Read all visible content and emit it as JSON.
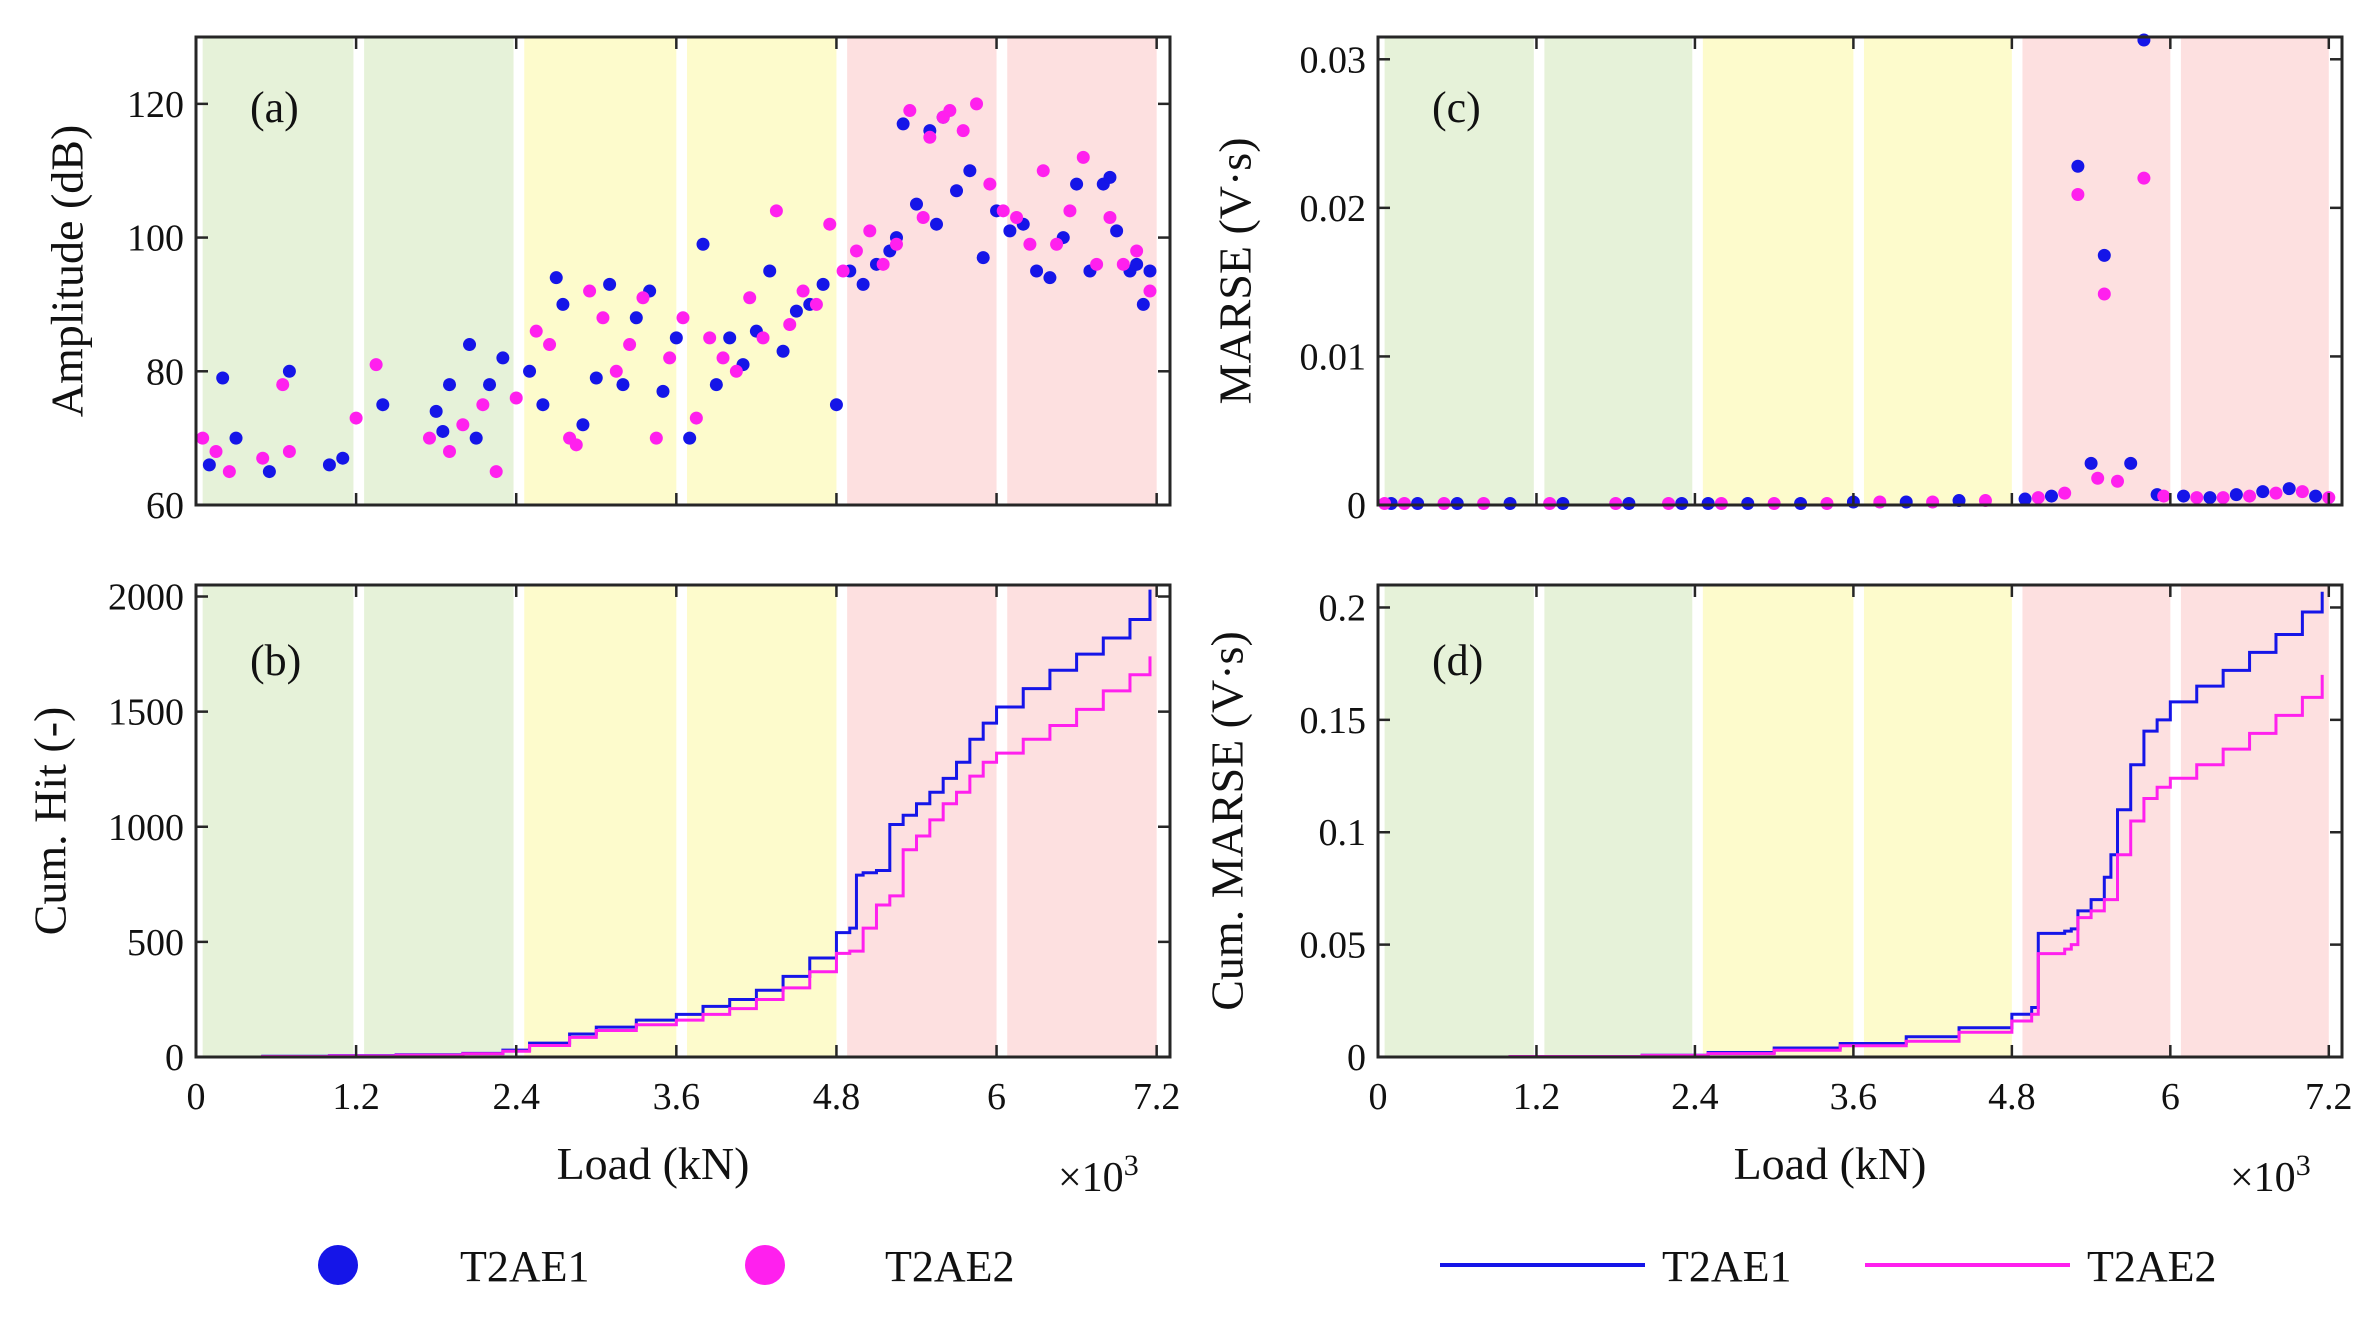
{
  "figure": {
    "x_axis_label": "Load (kN)",
    "x_exponent_prefix": "×10",
    "x_exponent": "3",
    "x_tick_labels": [
      "0",
      "1.2",
      "2.4",
      "3.6",
      "4.8",
      "6",
      "7.2"
    ],
    "x_range": [
      0,
      7.3
    ]
  },
  "bands": [
    {
      "from": 0.05,
      "to": 1.18,
      "color": "#e6f2d9"
    },
    {
      "from": 1.26,
      "to": 2.38,
      "color": "#e6f2d9"
    },
    {
      "from": 2.46,
      "to": 3.6,
      "color": "#fdfbcc"
    },
    {
      "from": 3.68,
      "to": 4.8,
      "color": "#fdfbcc"
    },
    {
      "from": 4.88,
      "to": 6.0,
      "color": "#fde0e0"
    },
    {
      "from": 6.08,
      "to": 7.2,
      "color": "#fde0e0"
    }
  ],
  "colors": {
    "T2AE1": "#1515e8",
    "T2AE2": "#ff20ee"
  },
  "legend_left": {
    "marker": "filled-circle",
    "items": [
      "T2AE1",
      "T2AE2"
    ]
  },
  "legend_right": {
    "marker": "line",
    "items": [
      "T2AE1",
      "T2AE2"
    ]
  },
  "chart_data": [
    {
      "panel": "(a)",
      "type": "scatter",
      "ylabel": "Amplitude (dB)",
      "ylim": [
        60,
        130
      ],
      "y_tick_labels": [
        "60",
        "80",
        "100",
        "120"
      ],
      "series": [
        {
          "name": "T2AE1",
          "x": [
            0.1,
            0.2,
            0.3,
            0.55,
            0.7,
            1.0,
            1.1,
            1.4,
            1.8,
            1.85,
            1.9,
            2.05,
            2.1,
            2.2,
            2.3,
            2.5,
            2.6,
            2.7,
            2.75,
            2.9,
            3.0,
            3.1,
            3.2,
            3.3,
            3.4,
            3.5,
            3.6,
            3.7,
            3.8,
            3.9,
            4.0,
            4.1,
            4.2,
            4.3,
            4.4,
            4.5,
            4.6,
            4.7,
            4.8,
            4.9,
            5.0,
            5.1,
            5.2,
            5.25,
            5.3,
            5.4,
            5.5,
            5.55,
            5.6,
            5.7,
            5.8,
            5.9,
            6.0,
            6.1,
            6.2,
            6.3,
            6.4,
            6.5,
            6.6,
            6.7,
            6.8,
            6.85,
            6.9,
            7.0,
            7.05,
            7.1,
            7.15
          ],
          "y": [
            66,
            79,
            70,
            65,
            80,
            66,
            67,
            75,
            74,
            71,
            78,
            84,
            70,
            78,
            82,
            80,
            75,
            94,
            90,
            72,
            79,
            93,
            78,
            88,
            92,
            77,
            85,
            70,
            99,
            78,
            85,
            81,
            86,
            95,
            83,
            89,
            90,
            93,
            75,
            95,
            93,
            96,
            98,
            100,
            117,
            105,
            116,
            102,
            118,
            107,
            110,
            97,
            104,
            101,
            102,
            95,
            94,
            100,
            108,
            95,
            108,
            109,
            101,
            95,
            96,
            90,
            95
          ]
        },
        {
          "name": "T2AE2",
          "x": [
            0.05,
            0.15,
            0.25,
            0.5,
            0.65,
            0.7,
            1.2,
            1.35,
            1.75,
            1.9,
            2.0,
            2.15,
            2.25,
            2.4,
            2.55,
            2.65,
            2.8,
            2.85,
            2.95,
            3.05,
            3.15,
            3.25,
            3.35,
            3.45,
            3.55,
            3.65,
            3.75,
            3.85,
            3.95,
            4.05,
            4.15,
            4.25,
            4.35,
            4.45,
            4.55,
            4.65,
            4.75,
            4.85,
            4.95,
            5.05,
            5.15,
            5.25,
            5.35,
            5.45,
            5.5,
            5.6,
            5.65,
            5.75,
            5.85,
            5.95,
            6.05,
            6.15,
            6.25,
            6.35,
            6.45,
            6.55,
            6.65,
            6.75,
            6.85,
            6.95,
            7.05,
            7.15
          ],
          "y": [
            70,
            68,
            65,
            67,
            78,
            68,
            73,
            81,
            70,
            68,
            72,
            75,
            65,
            76,
            86,
            84,
            70,
            69,
            92,
            88,
            80,
            84,
            91,
            70,
            82,
            88,
            73,
            85,
            82,
            80,
            91,
            85,
            104,
            87,
            92,
            90,
            102,
            95,
            98,
            101,
            96,
            99,
            119,
            103,
            115,
            118,
            119,
            116,
            120,
            108,
            104,
            103,
            99,
            110,
            99,
            104,
            112,
            96,
            103,
            96,
            98,
            92
          ]
        }
      ]
    },
    {
      "panel": "(b)",
      "type": "line",
      "ylabel": "Cum. Hit (-)",
      "ylim": [
        0,
        2050
      ],
      "y_tick_labels": [
        "0",
        "500",
        "1000",
        "1500",
        "2000"
      ],
      "series": [
        {
          "name": "T2AE1",
          "x": [
            0,
            0.5,
            1.0,
            1.5,
            2.0,
            2.3,
            2.5,
            2.8,
            3.0,
            3.3,
            3.6,
            3.8,
            4.0,
            4.2,
            4.4,
            4.6,
            4.8,
            4.9,
            4.95,
            5.0,
            5.1,
            5.2,
            5.3,
            5.4,
            5.5,
            5.6,
            5.7,
            5.8,
            5.9,
            6.0,
            6.2,
            6.4,
            6.6,
            6.8,
            7.0,
            7.15
          ],
          "y": [
            0,
            3,
            6,
            10,
            16,
            30,
            60,
            100,
            130,
            160,
            185,
            220,
            250,
            290,
            350,
            430,
            540,
            560,
            790,
            800,
            810,
            1010,
            1050,
            1100,
            1150,
            1210,
            1280,
            1380,
            1450,
            1520,
            1600,
            1680,
            1750,
            1820,
            1900,
            2030
          ]
        },
        {
          "name": "T2AE2",
          "x": [
            0,
            0.5,
            1.0,
            1.5,
            2.0,
            2.3,
            2.5,
            2.8,
            3.0,
            3.3,
            3.6,
            3.8,
            4.0,
            4.2,
            4.4,
            4.6,
            4.8,
            4.9,
            5.0,
            5.1,
            5.2,
            5.3,
            5.4,
            5.5,
            5.6,
            5.7,
            5.8,
            5.9,
            6.0,
            6.2,
            6.4,
            6.6,
            6.8,
            7.0,
            7.15
          ],
          "y": [
            0,
            2,
            5,
            8,
            14,
            25,
            50,
            85,
            115,
            140,
            160,
            185,
            210,
            250,
            300,
            370,
            450,
            460,
            560,
            660,
            700,
            900,
            960,
            1030,
            1100,
            1150,
            1220,
            1280,
            1320,
            1380,
            1440,
            1510,
            1590,
            1660,
            1740
          ]
        }
      ]
    },
    {
      "panel": "(c)",
      "type": "scatter",
      "ylabel": "MARSE (V·s)",
      "ylim": [
        0,
        0.0315
      ],
      "y_tick_labels": [
        "0",
        "0.01",
        "0.02",
        "0.03"
      ],
      "series": [
        {
          "name": "T2AE1",
          "x": [
            0.1,
            0.3,
            0.6,
            1.0,
            1.4,
            1.9,
            2.3,
            2.5,
            2.8,
            3.2,
            3.6,
            4.0,
            4.4,
            4.9,
            5.1,
            5.3,
            5.4,
            5.5,
            5.7,
            5.8,
            5.9,
            6.1,
            6.3,
            6.5,
            6.7,
            6.9,
            7.1
          ],
          "y": [
            0.0001,
            0.0001,
            0.0001,
            0.0001,
            0.0001,
            0.0001,
            0.0001,
            0.0001,
            0.0001,
            0.0001,
            0.0002,
            0.0002,
            0.0003,
            0.0004,
            0.0006,
            0.0228,
            0.0028,
            0.0168,
            0.0028,
            0.0313,
            0.0007,
            0.0006,
            0.0005,
            0.0007,
            0.0009,
            0.0011,
            0.0006
          ]
        },
        {
          "name": "T2AE2",
          "x": [
            0.05,
            0.2,
            0.5,
            0.8,
            1.3,
            1.8,
            2.2,
            2.6,
            3.0,
            3.4,
            3.8,
            4.2,
            4.6,
            5.0,
            5.2,
            5.3,
            5.45,
            5.5,
            5.6,
            5.8,
            5.95,
            6.2,
            6.4,
            6.6,
            6.8,
            7.0,
            7.2
          ],
          "y": [
            0.0001,
            0.0001,
            0.0001,
            0.0001,
            0.0001,
            0.0001,
            0.0001,
            0.0001,
            0.0001,
            0.0001,
            0.0002,
            0.0002,
            0.0003,
            0.0005,
            0.0008,
            0.0209,
            0.0018,
            0.0142,
            0.0016,
            0.022,
            0.0006,
            0.0005,
            0.0005,
            0.0006,
            0.0008,
            0.0009,
            0.0005
          ]
        }
      ]
    },
    {
      "panel": "(d)",
      "type": "line",
      "ylabel": "Cum. MARSE (V·s)",
      "ylim": [
        0,
        0.21
      ],
      "y_tick_labels": [
        "0",
        "0.05",
        "0.1",
        "0.15",
        "0.2"
      ],
      "series": [
        {
          "name": "T2AE1",
          "x": [
            0,
            1.0,
            2.0,
            2.5,
            3.0,
            3.5,
            4.0,
            4.4,
            4.8,
            4.95,
            5.0,
            5.2,
            5.25,
            5.3,
            5.4,
            5.5,
            5.55,
            5.6,
            5.7,
            5.8,
            5.9,
            6.0,
            6.2,
            6.4,
            6.6,
            6.8,
            7.0,
            7.15
          ],
          "y": [
            0,
            0.0002,
            0.0008,
            0.002,
            0.004,
            0.006,
            0.009,
            0.013,
            0.019,
            0.022,
            0.055,
            0.056,
            0.057,
            0.065,
            0.07,
            0.08,
            0.09,
            0.11,
            0.13,
            0.145,
            0.15,
            0.158,
            0.165,
            0.172,
            0.18,
            0.188,
            0.198,
            0.207
          ]
        },
        {
          "name": "T2AE2",
          "x": [
            0,
            1.0,
            2.0,
            2.5,
            3.0,
            3.5,
            4.0,
            4.4,
            4.8,
            4.95,
            5.0,
            5.2,
            5.25,
            5.3,
            5.4,
            5.5,
            5.6,
            5.7,
            5.8,
            5.9,
            6.0,
            6.2,
            6.4,
            6.6,
            6.8,
            7.0,
            7.15
          ],
          "y": [
            0,
            0.0002,
            0.0007,
            0.0015,
            0.003,
            0.005,
            0.007,
            0.011,
            0.016,
            0.019,
            0.046,
            0.048,
            0.05,
            0.062,
            0.065,
            0.07,
            0.09,
            0.105,
            0.115,
            0.12,
            0.124,
            0.13,
            0.137,
            0.144,
            0.152,
            0.16,
            0.17
          ]
        }
      ]
    }
  ]
}
